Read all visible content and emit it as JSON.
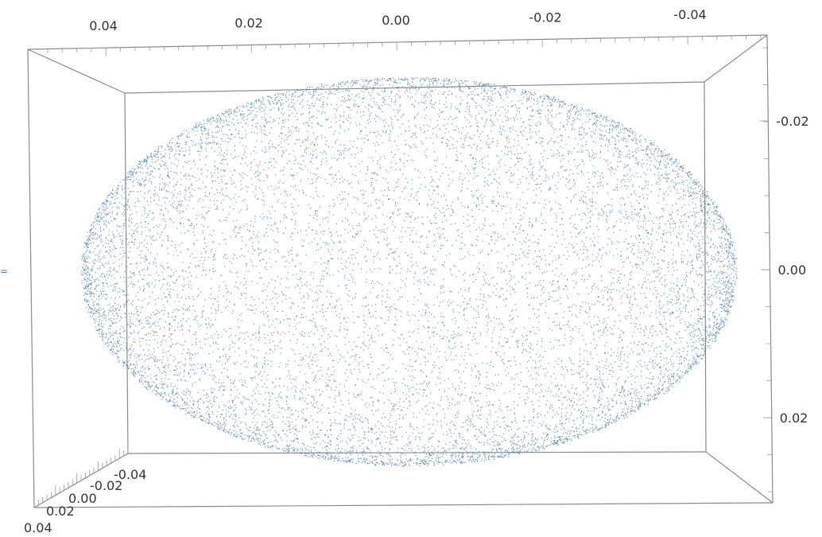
{
  "chart_data": {
    "type": "scatter",
    "projection": "3d",
    "title": "",
    "xlabel": "",
    "ylabel": "",
    "zlabel": "",
    "x_range": [
      0.04,
      -0.04
    ],
    "y_range": [
      -0.03,
      0.03
    ],
    "z_range": [
      0.04,
      -0.04
    ],
    "top_ticks": [
      "0.04",
      "0.02",
      "0.00",
      "-0.02",
      "-0.04"
    ],
    "right_ticks": [
      "-0.02",
      "0.00",
      "0.02"
    ],
    "depth_ticks": [
      "0.04",
      "0.02",
      "0.00",
      "-0.02",
      "-0.04"
    ],
    "cloud": {
      "shape": "ellipsoidal shell (uniform points, denser near the rim)",
      "center": [
        0.0,
        0.0
      ],
      "semi_axis_x": 0.047,
      "semi_axis_y": 0.023,
      "point_color": "#4f7fb0"
    },
    "box_color": "#8a8a8a",
    "grid": false,
    "legend": "none"
  },
  "side_marker": "="
}
